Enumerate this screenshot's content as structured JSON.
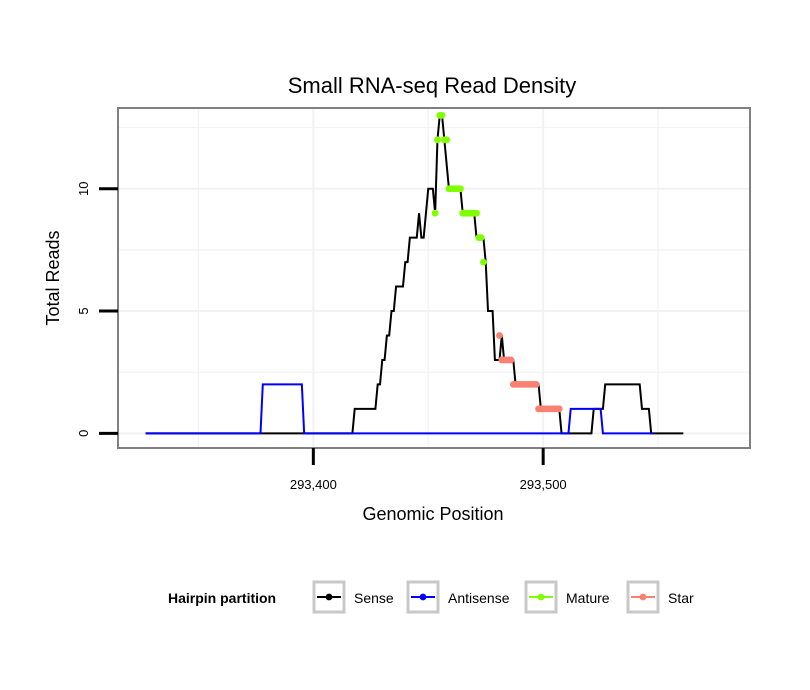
{
  "chart_data": {
    "type": "line",
    "title": "Small RNA-seq Read Density",
    "xlabel": "Genomic Position",
    "ylabel": "Total Reads",
    "xlim": [
      293315,
      293590
    ],
    "ylim": [
      -0.6,
      13.3
    ],
    "x_ticks": [
      {
        "value": 293400,
        "label": "293,400"
      },
      {
        "value": 293500,
        "label": "293,500"
      }
    ],
    "y_ticks": [
      {
        "value": 0,
        "label": "0"
      },
      {
        "value": 5,
        "label": "5"
      },
      {
        "value": 10,
        "label": "10"
      }
    ],
    "legend": {
      "title": "Hairpin partition",
      "position": "bottom",
      "entries": [
        {
          "label": "Sense",
          "color": "#000000"
        },
        {
          "label": "Antisense",
          "color": "#0000ff"
        },
        {
          "label": "Mature",
          "color": "#7fff00"
        },
        {
          "label": "Star",
          "color": "#fa8072"
        }
      ]
    },
    "series": [
      {
        "name": "Sense",
        "color": "#000000",
        "mode": "step",
        "points": [
          [
            293327,
            0
          ],
          [
            293417,
            0
          ],
          [
            293418,
            1
          ],
          [
            293427,
            1
          ],
          [
            293428,
            2
          ],
          [
            293429,
            2
          ],
          [
            293430,
            3
          ],
          [
            293431,
            3
          ],
          [
            293432,
            4
          ],
          [
            293433,
            4
          ],
          [
            293434,
            5
          ],
          [
            293435,
            5
          ],
          [
            293436,
            6
          ],
          [
            293439,
            6
          ],
          [
            293440,
            7
          ],
          [
            293441,
            7
          ],
          [
            293442,
            8
          ],
          [
            293445,
            8
          ],
          [
            293446,
            9
          ],
          [
            293447,
            8
          ],
          [
            293448,
            8
          ],
          [
            293450,
            10
          ],
          [
            293452,
            10
          ],
          [
            293453,
            9
          ],
          [
            293454,
            12
          ],
          [
            293455,
            13
          ],
          [
            293456,
            13
          ],
          [
            293457,
            12
          ],
          [
            293459,
            10
          ],
          [
            293464,
            10
          ],
          [
            293465,
            9
          ],
          [
            293470,
            9
          ],
          [
            293471,
            8
          ],
          [
            293474,
            8
          ],
          [
            293475,
            7
          ],
          [
            293476,
            5
          ],
          [
            293478,
            5
          ],
          [
            293479,
            3
          ],
          [
            293481,
            3
          ],
          [
            293482,
            4
          ],
          [
            293483,
            3
          ],
          [
            293487,
            3
          ],
          [
            293488,
            2
          ],
          [
            293498,
            2
          ],
          [
            293499,
            1
          ],
          [
            293507,
            1
          ],
          [
            293508,
            0
          ],
          [
            293521,
            0
          ],
          [
            293522,
            1
          ],
          [
            293526,
            1
          ],
          [
            293527,
            2
          ],
          [
            293542,
            2
          ],
          [
            293543,
            1
          ],
          [
            293546,
            1
          ],
          [
            293547,
            0
          ],
          [
            293561,
            0
          ]
        ]
      },
      {
        "name": "Antisense",
        "color": "#0000ff",
        "mode": "step",
        "points": [
          [
            293327,
            0
          ],
          [
            293377,
            0
          ],
          [
            293378,
            2
          ],
          [
            293395,
            2
          ],
          [
            293396,
            0
          ],
          [
            293511,
            0
          ],
          [
            293512,
            1
          ],
          [
            293525,
            1
          ],
          [
            293526,
            0
          ],
          [
            293548,
            0
          ]
        ]
      },
      {
        "name": "Mature",
        "color": "#7fff00",
        "mode": "points",
        "points": [
          [
            293453,
            9
          ],
          [
            293454,
            12
          ],
          [
            293455,
            13
          ],
          [
            293456,
            13
          ],
          [
            293457,
            12
          ],
          [
            293458,
            12
          ],
          [
            293459,
            10
          ],
          [
            293460,
            10
          ],
          [
            293461,
            10
          ],
          [
            293462,
            10
          ],
          [
            293463,
            10
          ],
          [
            293464,
            10
          ],
          [
            293465,
            9
          ],
          [
            293466,
            9
          ],
          [
            293467,
            9
          ],
          [
            293468,
            9
          ],
          [
            293469,
            9
          ],
          [
            293470,
            9
          ],
          [
            293471,
            9
          ],
          [
            293472,
            8
          ],
          [
            293473,
            8
          ],
          [
            293474,
            7
          ]
        ]
      },
      {
        "name": "Star",
        "color": "#fa8072",
        "mode": "points",
        "points": [
          [
            293481,
            4
          ],
          [
            293482,
            3
          ],
          [
            293483,
            3
          ],
          [
            293484,
            3
          ],
          [
            293485,
            3
          ],
          [
            293486,
            3
          ],
          [
            293487,
            2
          ],
          [
            293488,
            2
          ],
          [
            293489,
            2
          ],
          [
            293490,
            2
          ],
          [
            293491,
            2
          ],
          [
            293492,
            2
          ],
          [
            293493,
            2
          ],
          [
            293494,
            2
          ],
          [
            293495,
            2
          ],
          [
            293496,
            2
          ],
          [
            293497,
            2
          ],
          [
            293498,
            1
          ],
          [
            293499,
            1
          ],
          [
            293500,
            1
          ],
          [
            293501,
            1
          ],
          [
            293502,
            1
          ],
          [
            293503,
            1
          ],
          [
            293504,
            1
          ],
          [
            293505,
            1
          ],
          [
            293506,
            1
          ],
          [
            293507,
            1
          ]
        ]
      }
    ]
  }
}
